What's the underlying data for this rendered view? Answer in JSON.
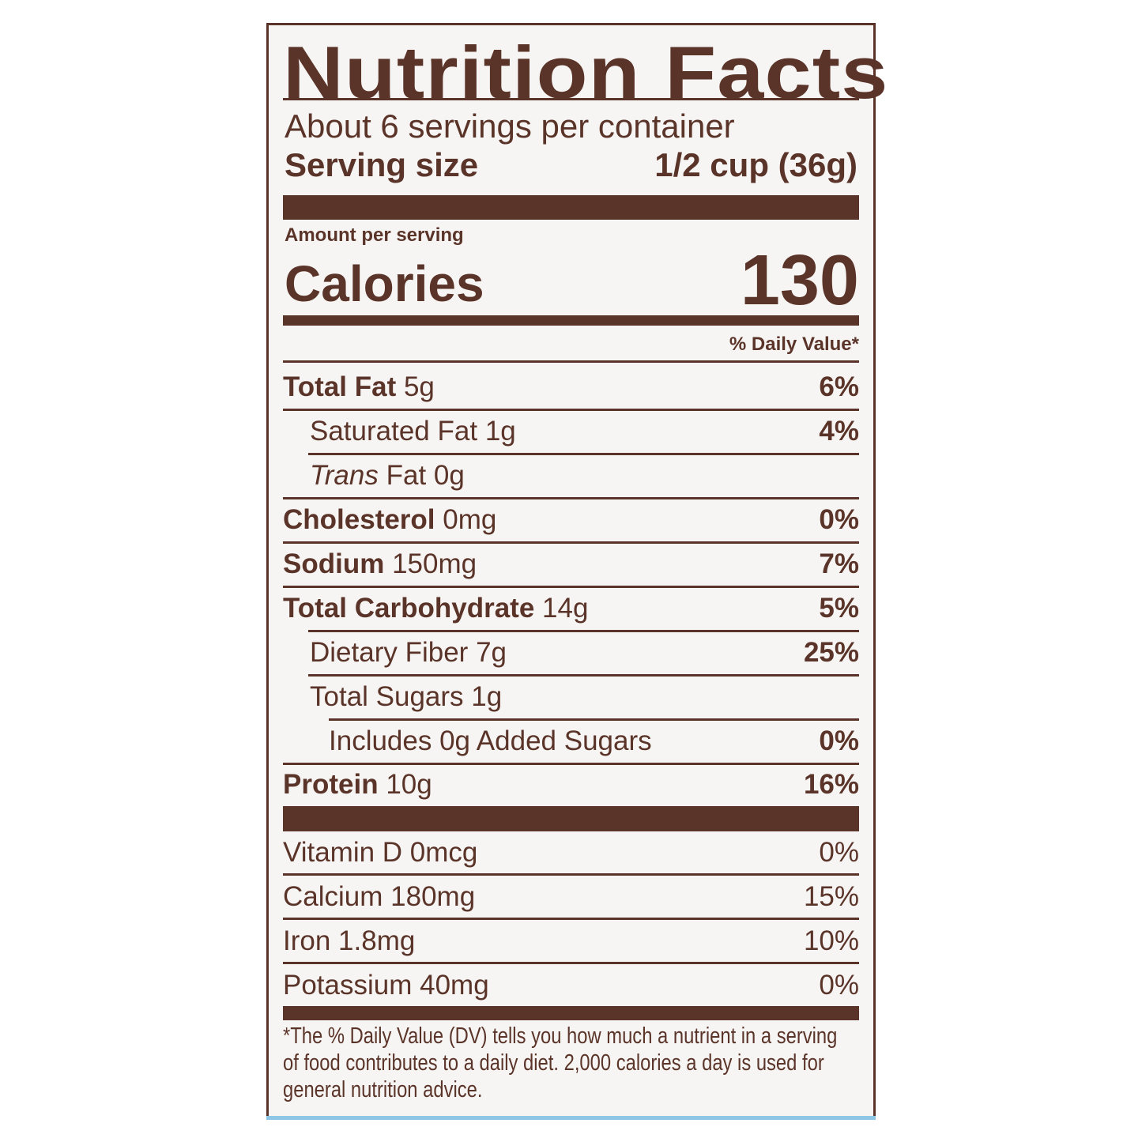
{
  "title": "Nutrition Facts",
  "servings_per_container": "About 6 servings per container",
  "serving_size": {
    "label": "Serving size",
    "value": "1/2 cup (36g)"
  },
  "amount_per_serving": "Amount per serving",
  "calories": {
    "label": "Calories",
    "value": "130"
  },
  "daily_value_header": "% Daily Value*",
  "nutrients": [
    {
      "name": "Total Fat",
      "amount": "5g",
      "dv": "6%"
    },
    {
      "name": "Saturated Fat",
      "amount": "1g",
      "dv": "4%"
    },
    {
      "name": "Trans",
      "name_suffix": "Fat",
      "amount": "0g",
      "dv": ""
    },
    {
      "name": "Cholesterol",
      "amount": "0mg",
      "dv": "0%"
    },
    {
      "name": "Sodium",
      "amount": "150mg",
      "dv": "7%"
    },
    {
      "name": "Total Carbohydrate",
      "amount": "14g",
      "dv": "5%"
    },
    {
      "name": "Dietary Fiber",
      "amount": "7g",
      "dv": "25%"
    },
    {
      "name": "Total Sugars",
      "amount": "1g",
      "dv": ""
    },
    {
      "name": "Includes 0g Added Sugars",
      "amount": "",
      "dv": "0%"
    },
    {
      "name": "Protein",
      "amount": "10g",
      "dv": "16%"
    }
  ],
  "vitamins": [
    {
      "name": "Vitamin D 0mcg",
      "dv": "0%"
    },
    {
      "name": "Calcium 180mg",
      "dv": "15%"
    },
    {
      "name": "Iron 1.8mg",
      "dv": "10%"
    },
    {
      "name": "Potassium 40mg",
      "dv": "0%"
    }
  ],
  "footnote": "*The % Daily Value (DV) tells you how much a nutrient in a serving of food contributes to a daily diet. 2,000 calories a day is used for general nutrition advice.",
  "colors": {
    "ink": "#5b3429",
    "accent_strip": "#8ec6e6"
  }
}
